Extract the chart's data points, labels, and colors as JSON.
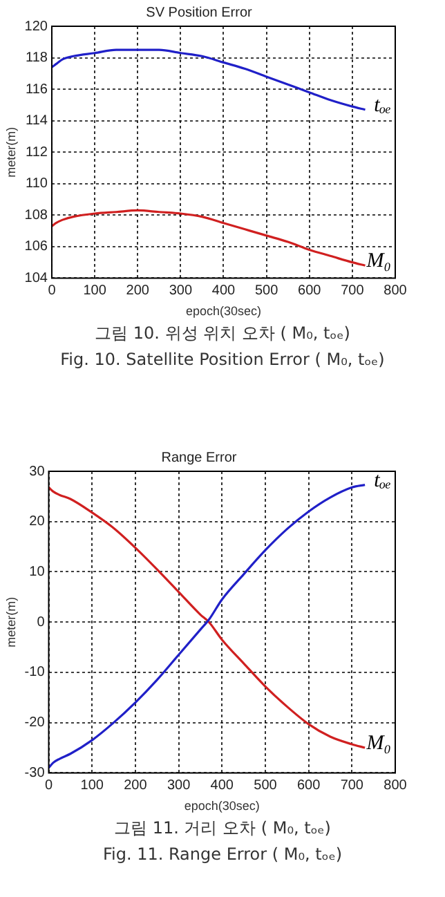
{
  "chart_data": [
    {
      "type": "line",
      "title": "SV Position Error",
      "xlabel": "epoch(30sec)",
      "ylabel": "meter(m)",
      "xlim": [
        0,
        800
      ],
      "xticks": [
        0,
        100,
        200,
        300,
        400,
        500,
        600,
        700,
        800
      ],
      "ylim": [
        104,
        120
      ],
      "yticks": [
        104,
        106,
        108,
        110,
        112,
        114,
        116,
        118,
        120
      ],
      "grid": true,
      "legend": false,
      "marker": "none",
      "line_style": "solid",
      "series": [
        {
          "name": "tₒₑ",
          "color": "#2020c8",
          "x": [
            0,
            10,
            25,
            50,
            100,
            150,
            200,
            250,
            300,
            350,
            400,
            450,
            500,
            550,
            600,
            650,
            700,
            730
          ],
          "values": [
            117.4,
            117.6,
            117.9,
            118.1,
            118.3,
            118.5,
            118.5,
            118.5,
            118.3,
            118.1,
            117.7,
            117.3,
            116.8,
            116.3,
            115.8,
            115.3,
            114.9,
            114.7
          ]
        },
        {
          "name": "M₀",
          "color": "#d02020",
          "x": [
            0,
            10,
            25,
            50,
            100,
            150,
            200,
            250,
            300,
            350,
            400,
            450,
            500,
            550,
            600,
            650,
            700,
            730
          ],
          "values": [
            107.3,
            107.5,
            107.7,
            107.9,
            108.1,
            108.2,
            108.3,
            108.2,
            108.1,
            107.9,
            107.5,
            107.1,
            106.7,
            106.3,
            105.8,
            105.4,
            105,
            104.8
          ]
        }
      ],
      "annotations": [
        "그림 10. 위성 위치 오차 ( M₀,  tₒₑ)",
        "Fig. 10. Satellite Position Error ( M₀,  tₒₑ)"
      ]
    },
    {
      "type": "line",
      "title": "Range Error",
      "xlabel": "epoch(30sec)",
      "ylabel": "meter(m)",
      "xlim": [
        0,
        800
      ],
      "xticks": [
        0,
        100,
        200,
        300,
        400,
        500,
        600,
        700,
        800
      ],
      "ylim": [
        -30,
        30
      ],
      "yticks": [
        -30,
        -20,
        -10,
        0,
        10,
        20,
        30
      ],
      "grid": true,
      "legend": false,
      "marker": "none",
      "line_style": "solid",
      "series": [
        {
          "name": "tₒₑ",
          "color": "#2020c8",
          "x": [
            0,
            10,
            25,
            50,
            100,
            150,
            200,
            250,
            300,
            350,
            370,
            400,
            450,
            500,
            550,
            600,
            650,
            700,
            730
          ],
          "values": [
            -29,
            -28,
            -27.2,
            -26.2,
            -23.5,
            -20,
            -16,
            -11.5,
            -6.5,
            -1.5,
            0.5,
            4.5,
            9.5,
            14.3,
            18.5,
            22,
            24.8,
            26.8,
            27.3
          ]
        },
        {
          "name": "M₀",
          "color": "#d02020",
          "x": [
            0,
            10,
            25,
            50,
            100,
            150,
            200,
            250,
            300,
            350,
            370,
            400,
            450,
            500,
            550,
            600,
            650,
            700,
            730
          ],
          "values": [
            26.8,
            26,
            25.3,
            24.5,
            21.8,
            18.7,
            14.8,
            10.5,
            6,
            1.5,
            0,
            -3.5,
            -8.2,
            -12.8,
            -16.8,
            -20.3,
            -22.8,
            -24.3,
            -25
          ]
        }
      ],
      "annotations": [
        "그림 11. 거리 오차 ( M₀,  tₒₑ)",
        "Fig. 11. Range Error ( M₀,  tₒₑ)"
      ]
    }
  ]
}
